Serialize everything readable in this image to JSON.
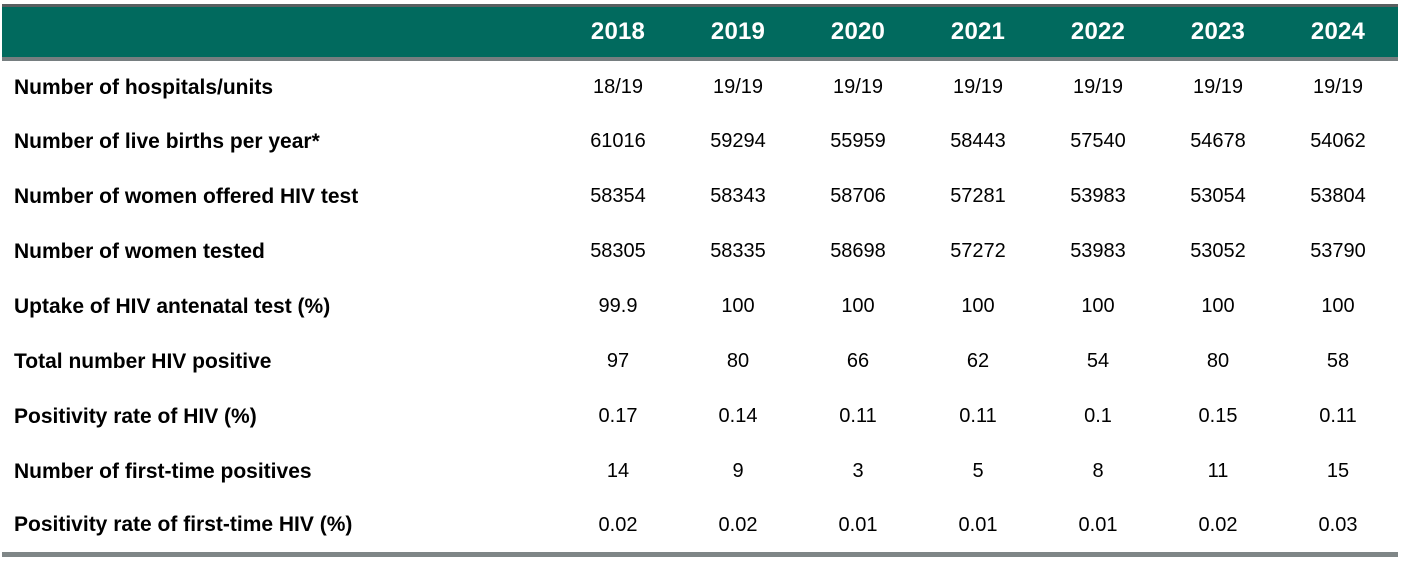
{
  "chart_data": {
    "type": "table",
    "columns": [
      "2018",
      "2019",
      "2020",
      "2021",
      "2022",
      "2023",
      "2024"
    ],
    "rows": [
      {
        "label": "Number of hospitals/units",
        "values": [
          "18/19",
          "19/19",
          "19/19",
          "19/19",
          "19/19",
          "19/19",
          "19/19"
        ]
      },
      {
        "label": "Number of live births per year*",
        "values": [
          "61016",
          "59294",
          "55959",
          "58443",
          "57540",
          "54678",
          "54062"
        ]
      },
      {
        "label": "Number of women offered HIV test",
        "values": [
          "58354",
          "58343",
          "58706",
          "57281",
          "53983",
          "53054",
          "53804"
        ]
      },
      {
        "label": "Number of women tested",
        "values": [
          "58305",
          "58335",
          "58698",
          "57272",
          "53983",
          "53052",
          "53790"
        ]
      },
      {
        "label": "Uptake of HIV antenatal test (%)",
        "values": [
          "99.9",
          "100",
          "100",
          "100",
          "100",
          "100",
          "100"
        ]
      },
      {
        "label": "Total number HIV positive",
        "values": [
          "97",
          "80",
          "66",
          "62",
          "54",
          "80",
          "58"
        ]
      },
      {
        "label": "Positivity rate of HIV (%)",
        "values": [
          "0.17",
          "0.14",
          "0.11",
          "0.11",
          "0.1",
          "0.15",
          "0.11"
        ]
      },
      {
        "label": "Number of first-time positives",
        "values": [
          "14",
          "9",
          "3",
          "5",
          "8",
          "11",
          "15"
        ]
      },
      {
        "label": "Positivity rate of first-time HIV (%)",
        "values": [
          "0.02",
          "0.02",
          "0.01",
          "0.01",
          "0.01",
          "0.02",
          "0.03"
        ]
      }
    ],
    "layout": {
      "grid": "horizontal-rules-only",
      "header_position": "top",
      "label_column_alignment": "left",
      "value_alignment": "center"
    }
  },
  "colors": {
    "header_bg": "#016a5e",
    "header_text": "#ffffff",
    "top_border": "#595f60",
    "header_divider": "#767e80",
    "bottom_border": "#7f8687",
    "body_text": "#000000"
  }
}
